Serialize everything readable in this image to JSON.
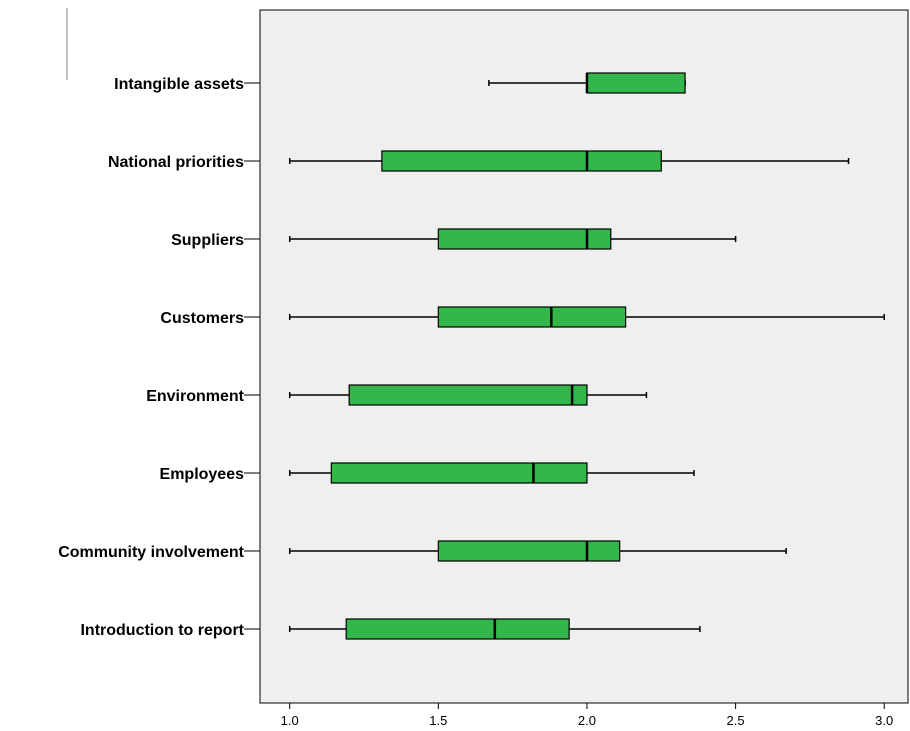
{
  "chart_data": {
    "type": "boxplot",
    "orientation": "horizontal",
    "title": "",
    "xlabel": "",
    "ylabel": "",
    "xlim": [
      0.9,
      3.08
    ],
    "x_ticks": [
      1.0,
      1.5,
      2.0,
      2.5,
      3.0
    ],
    "x_tick_labels": [
      "1.0",
      "1.5",
      "2.0",
      "2.5",
      "3.0"
    ],
    "grid": false,
    "legend": "none",
    "categories": [
      "Intangible assets",
      "National priorities",
      "Suppliers",
      "Customers",
      "Environment",
      "Employees",
      "Community involvement",
      "Introduction to report"
    ],
    "boxes": [
      {
        "category": "Intangible assets",
        "whisker_low": 1.67,
        "q1": 2.0,
        "median": 2.0,
        "q3": 2.33,
        "whisker_high": 2.33
      },
      {
        "category": "National priorities",
        "whisker_low": 1.0,
        "q1": 1.31,
        "median": 2.0,
        "q3": 2.25,
        "whisker_high": 2.88
      },
      {
        "category": "Suppliers",
        "whisker_low": 1.0,
        "q1": 1.5,
        "median": 2.0,
        "q3": 2.08,
        "whisker_high": 2.5
      },
      {
        "category": "Customers",
        "whisker_low": 1.0,
        "q1": 1.5,
        "median": 1.88,
        "q3": 2.13,
        "whisker_high": 3.0
      },
      {
        "category": "Environment",
        "whisker_low": 1.0,
        "q1": 1.2,
        "median": 1.95,
        "q3": 2.0,
        "whisker_high": 2.2
      },
      {
        "category": "Employees",
        "whisker_low": 1.0,
        "q1": 1.14,
        "median": 1.82,
        "q3": 2.0,
        "whisker_high": 2.36
      },
      {
        "category": "Community involvement",
        "whisker_low": 1.0,
        "q1": 1.5,
        "median": 2.0,
        "q3": 2.11,
        "whisker_high": 2.67
      },
      {
        "category": "Introduction to report",
        "whisker_low": 1.0,
        "q1": 1.19,
        "median": 1.69,
        "q3": 1.94,
        "whisker_high": 2.38
      }
    ],
    "colors": {
      "box_fill": "#33b74a",
      "plot_background": "#efefef",
      "stroke": "#000000"
    }
  }
}
